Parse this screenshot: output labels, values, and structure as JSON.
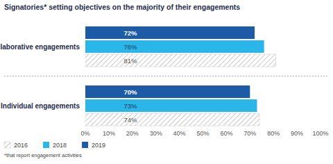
{
  "chart_data": {
    "type": "bar",
    "orientation": "horizontal",
    "title": "Signatories* setting objectives on the majority of their engagements",
    "footnote": "*that report engagement activities",
    "categories": [
      "Collaborative engagements",
      "Individual engagements"
    ],
    "series": [
      {
        "name": "2016",
        "color": "#bdbdbd",
        "marker": "hatch",
        "values": [
          81,
          74
        ],
        "value_labels": [
          "81%",
          "74%"
        ]
      },
      {
        "name": "2018",
        "color": "#2bb6e9",
        "values": [
          76,
          73
        ],
        "value_labels": [
          "76%",
          "73%"
        ]
      },
      {
        "name": "2019",
        "color": "#1d5ba6",
        "values": [
          72,
          70
        ],
        "value_labels": [
          "72%",
          "70%"
        ]
      }
    ],
    "xlim": [
      0,
      100
    ],
    "xticks": [
      {
        "value": 0,
        "label": "0%"
      },
      {
        "value": 10,
        "label": "10%"
      },
      {
        "value": 20,
        "label": "20%"
      },
      {
        "value": 30,
        "label": "30%"
      },
      {
        "value": 40,
        "label": "40%"
      },
      {
        "value": 50,
        "label": "50%"
      },
      {
        "value": 60,
        "label": "60%"
      },
      {
        "value": 70,
        "label": "70%"
      },
      {
        "value": 80,
        "label": "80%"
      },
      {
        "value": 90,
        "label": "90%"
      },
      {
        "value": 100,
        "label": "100%"
      }
    ],
    "grid": false,
    "data_labels": true,
    "legend": "bottom-left"
  }
}
